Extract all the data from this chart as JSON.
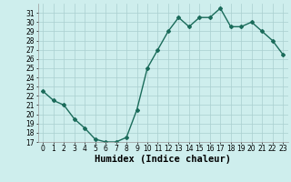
{
  "x": [
    0,
    1,
    2,
    3,
    4,
    5,
    6,
    7,
    8,
    9,
    10,
    11,
    12,
    13,
    14,
    15,
    16,
    17,
    18,
    19,
    20,
    21,
    22,
    23
  ],
  "y": [
    22.5,
    21.5,
    21.0,
    19.5,
    18.5,
    17.3,
    17.0,
    17.0,
    17.5,
    20.5,
    25.0,
    27.0,
    29.0,
    30.5,
    29.5,
    30.5,
    30.5,
    31.5,
    29.5,
    29.5,
    30.0,
    29.0,
    28.0,
    26.5
  ],
  "line_color": "#1a6b5a",
  "marker": "D",
  "markersize": 2,
  "linewidth": 1.0,
  "xlabel": "Humidex (Indice chaleur)",
  "xlim": [
    -0.5,
    23.5
  ],
  "ylim": [
    17,
    32
  ],
  "yticks": [
    17,
    18,
    19,
    20,
    21,
    22,
    23,
    24,
    25,
    26,
    27,
    28,
    29,
    30,
    31
  ],
  "xticks": [
    0,
    1,
    2,
    3,
    4,
    5,
    6,
    7,
    8,
    9,
    10,
    11,
    12,
    13,
    14,
    15,
    16,
    17,
    18,
    19,
    20,
    21,
    22,
    23
  ],
  "bg_color": "#ceeeed",
  "grid_color": "#aacfcf",
  "tick_label_fontsize": 5.5,
  "xlabel_fontsize": 7.5
}
